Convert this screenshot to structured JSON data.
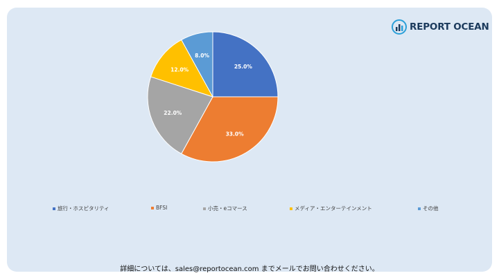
{
  "brand": {
    "name": "REPORT OCEAN"
  },
  "footer": {
    "text": "詳細については、sales@reportocean.com までメールでお問い合わせください。"
  },
  "chart_data": {
    "type": "pie",
    "title": "",
    "categories": [
      "旅行・ホスピタリティ",
      "BFSI",
      "小売・eコマース",
      "メディア・エンターテインメント",
      "その他"
    ],
    "values": [
      25.0,
      33.0,
      22.0,
      12.0,
      8.0
    ],
    "labels": [
      "25.0%",
      "33.0%",
      "22.0%",
      "12.0%",
      "8.0%"
    ],
    "colors": [
      "#4472c4",
      "#ed7d31",
      "#a5a5a5",
      "#ffc000",
      "#5b9bd5"
    ],
    "legend_position": "bottom",
    "start_angle": "top, clockwise"
  }
}
